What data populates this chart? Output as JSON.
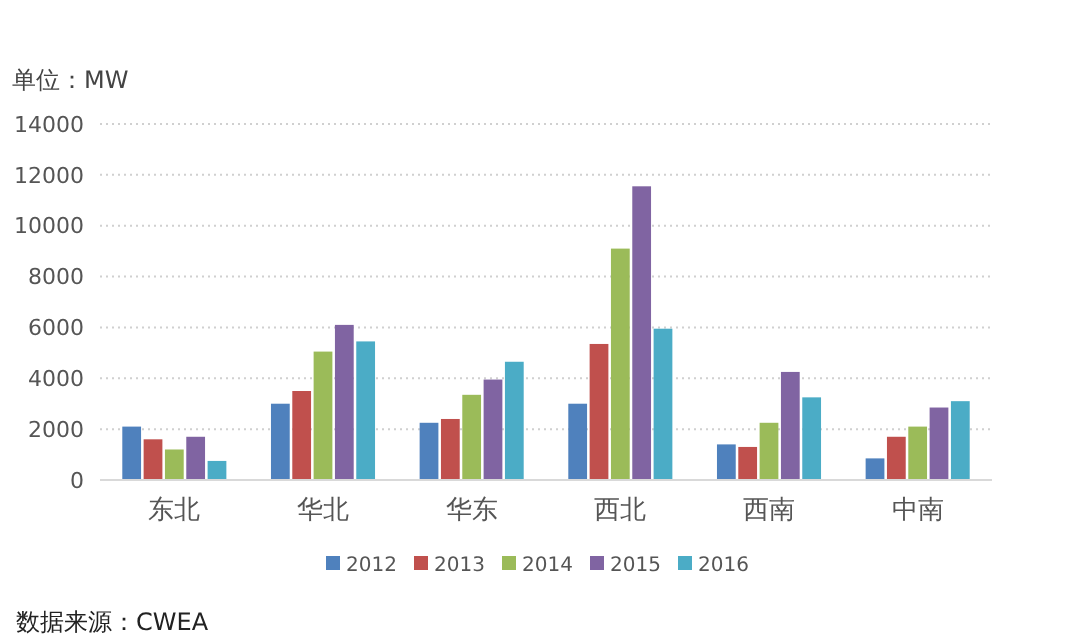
{
  "chart_data": {
    "type": "bar",
    "ylabel": "单位：MW",
    "categories": [
      "东北",
      "华北",
      "华东",
      "西北",
      "西南",
      "中南"
    ],
    "series": [
      {
        "name": "2012",
        "color": "#4f81bd",
        "values": [
          2100,
          3000,
          2250,
          3000,
          1400,
          850
        ]
      },
      {
        "name": "2013",
        "color": "#c0504d",
        "values": [
          1600,
          3500,
          2400,
          5350,
          1300,
          1700
        ]
      },
      {
        "name": "2014",
        "color": "#9bbb59",
        "values": [
          1200,
          5050,
          3350,
          9100,
          2250,
          2100
        ]
      },
      {
        "name": "2015",
        "color": "#8064a2",
        "values": [
          1700,
          6100,
          3950,
          11550,
          4250,
          2850
        ]
      },
      {
        "name": "2016",
        "color": "#4bacc6",
        "values": [
          750,
          5450,
          4650,
          5950,
          3250,
          3100
        ]
      }
    ],
    "ylim": [
      0,
      14000
    ],
    "yticks": [
      0,
      2000,
      4000,
      6000,
      8000,
      10000,
      12000,
      14000
    ],
    "grid": "y",
    "legend": "bottom",
    "annotations": [
      "数据来源：CWEA"
    ]
  }
}
